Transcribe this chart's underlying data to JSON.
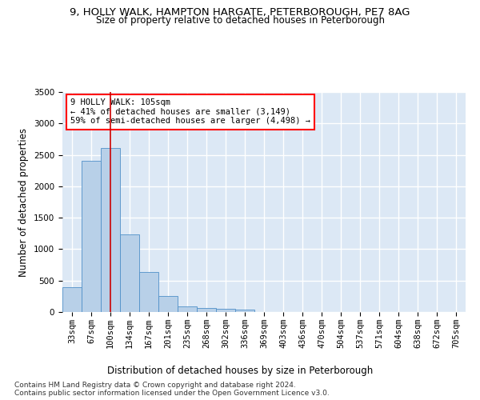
{
  "title_line1": "9, HOLLY WALK, HAMPTON HARGATE, PETERBOROUGH, PE7 8AG",
  "title_line2": "Size of property relative to detached houses in Peterborough",
  "xlabel": "Distribution of detached houses by size in Peterborough",
  "ylabel": "Number of detached properties",
  "bar_color": "#b8d0e8",
  "bar_edge_color": "#5090c8",
  "background_color": "#dce8f5",
  "grid_color": "#ffffff",
  "categories": [
    "33sqm",
    "67sqm",
    "100sqm",
    "134sqm",
    "167sqm",
    "201sqm",
    "235sqm",
    "268sqm",
    "302sqm",
    "336sqm",
    "369sqm",
    "403sqm",
    "436sqm",
    "470sqm",
    "504sqm",
    "537sqm",
    "571sqm",
    "604sqm",
    "638sqm",
    "672sqm",
    "705sqm"
  ],
  "values": [
    390,
    2400,
    2610,
    1240,
    640,
    260,
    95,
    60,
    55,
    40,
    0,
    0,
    0,
    0,
    0,
    0,
    0,
    0,
    0,
    0,
    0
  ],
  "property_label": "9 HOLLY WALK: 105sqm",
  "pct_smaller": "41%",
  "num_smaller": "3,149",
  "pct_larger_semi": "59%",
  "num_larger_semi": "4,498",
  "vline_x_index": 2,
  "footer_line1": "Contains HM Land Registry data © Crown copyright and database right 2024.",
  "footer_line2": "Contains public sector information licensed under the Open Government Licence v3.0.",
  "ylim": [
    0,
    3500
  ],
  "yticks": [
    0,
    500,
    1000,
    1500,
    2000,
    2500,
    3000,
    3500
  ],
  "title_fontsize": 9.5,
  "subtitle_fontsize": 8.5,
  "axis_label_fontsize": 8.5,
  "tick_fontsize": 7.5,
  "annotation_fontsize": 7.5,
  "footer_fontsize": 6.5
}
